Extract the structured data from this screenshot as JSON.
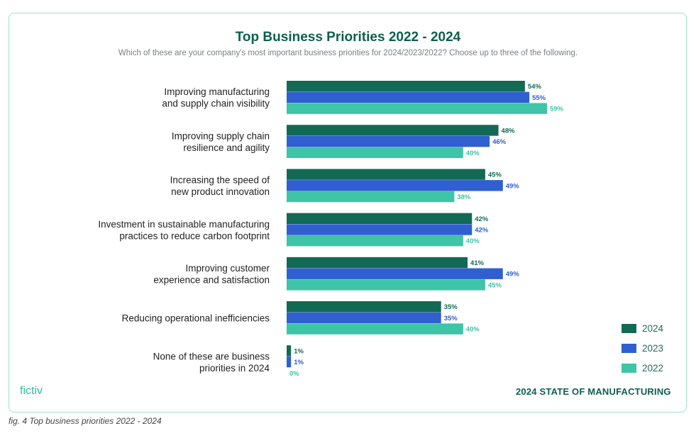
{
  "chart_data": {
    "type": "bar",
    "orientation": "horizontal",
    "title": "Top Business Priorities 2022 - 2024",
    "subtitle": "Which of these are your company's most important business priorities for 2024/2023/2022? Choose up to three of the following.",
    "categories": [
      [
        "Improving manufacturing",
        "and supply chain visibility"
      ],
      [
        "Improving supply chain",
        "resilience and agility"
      ],
      [
        "Increasing the speed of",
        "new product innovation"
      ],
      [
        "Investment in sustainable manufacturing",
        "practices to reduce carbon footprint"
      ],
      [
        "Improving customer",
        "experience and satisfaction"
      ],
      [
        "Reducing operational inefficiencies"
      ],
      [
        "None of these are business",
        "priorities in 2024"
      ]
    ],
    "series": [
      {
        "name": "2024",
        "color": "#126a55",
        "values": [
          54,
          48,
          45,
          42,
          41,
          35,
          1
        ]
      },
      {
        "name": "2023",
        "color": "#2f5fd0",
        "values": [
          55,
          46,
          49,
          42,
          49,
          35,
          1
        ]
      },
      {
        "name": "2022",
        "color": "#3ec4a6",
        "values": [
          59,
          40,
          38,
          40,
          45,
          40,
          0
        ]
      }
    ],
    "value_suffix": "%",
    "legend_position": "bottom-right",
    "grid": false
  },
  "legend": [
    {
      "label": "2024",
      "color": "#126a55"
    },
    {
      "label": "2023",
      "color": "#2f5fd0"
    },
    {
      "label": "2022",
      "color": "#3ec4a6"
    }
  ],
  "footer": {
    "brand": "fictiv",
    "report_title": "2024 STATE OF MANUFACTURING"
  },
  "caption": "fig. 4 Top business priorities 2022 - 2024"
}
